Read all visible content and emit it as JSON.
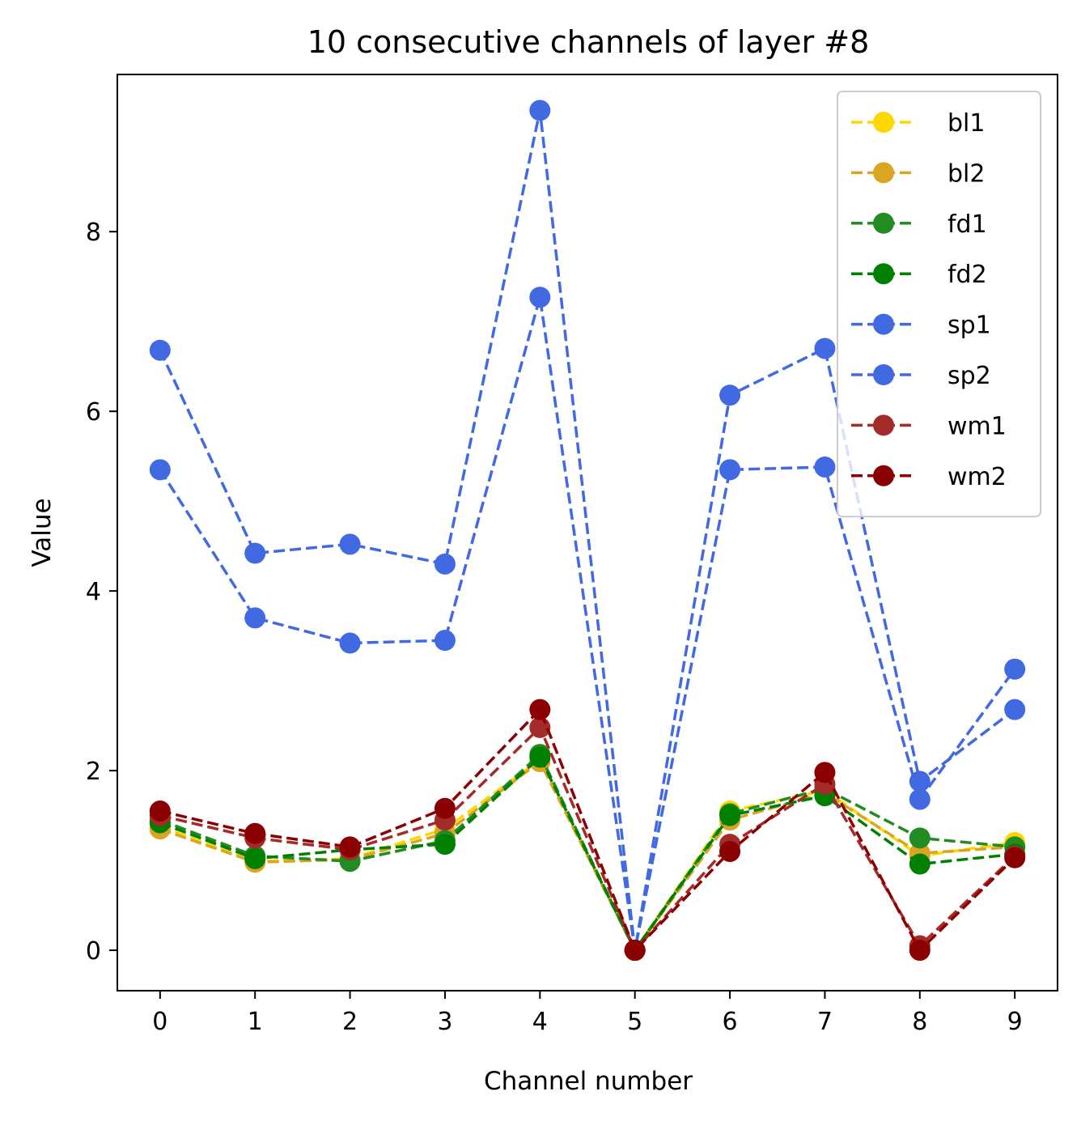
{
  "chart_data": {
    "type": "line",
    "title": "10 consecutive channels of layer #8",
    "xlabel": "Channel number",
    "ylabel": "Value",
    "x": [
      0,
      1,
      2,
      3,
      4,
      5,
      6,
      7,
      8,
      9
    ],
    "x_ticks": [
      "0",
      "1",
      "2",
      "3",
      "4",
      "5",
      "6",
      "7",
      "8",
      "9"
    ],
    "y_ticks": [
      "0",
      "2",
      "4",
      "6",
      "8"
    ],
    "xlim": [
      -0.45,
      9.45
    ],
    "ylim": [
      -0.45,
      9.75
    ],
    "grid": false,
    "legend_position": "top-right",
    "line_style": "dashed",
    "marker": "circle",
    "series": [
      {
        "name": "bl1",
        "color": "#FFD700",
        "values": [
          1.38,
          0.99,
          1.02,
          1.35,
          2.12,
          0.0,
          1.55,
          1.78,
          1.05,
          1.2
        ]
      },
      {
        "name": "bl2",
        "color": "#DAA520",
        "values": [
          1.35,
          0.98,
          1.01,
          1.3,
          2.1,
          0.0,
          1.45,
          1.75,
          1.08,
          1.15
        ]
      },
      {
        "name": "fd1",
        "color": "#228B22",
        "values": [
          1.45,
          1.05,
          0.99,
          1.22,
          2.18,
          0.0,
          1.52,
          1.8,
          1.25,
          1.15
        ]
      },
      {
        "name": "fd2",
        "color": "#008000",
        "values": [
          1.42,
          1.02,
          1.12,
          1.18,
          2.15,
          0.0,
          1.5,
          1.72,
          0.96,
          1.07
        ]
      },
      {
        "name": "sp1",
        "color": "#4169E1",
        "values": [
          6.68,
          4.42,
          4.52,
          4.3,
          9.35,
          0.0,
          6.18,
          6.7,
          1.88,
          2.68
        ]
      },
      {
        "name": "sp2",
        "color": "#4169E1",
        "values": [
          5.35,
          3.7,
          3.42,
          3.45,
          7.27,
          0.0,
          5.35,
          5.38,
          1.68,
          3.13
        ]
      },
      {
        "name": "wm1",
        "color": "#A52A2A",
        "values": [
          1.5,
          1.25,
          1.12,
          1.45,
          2.48,
          0.0,
          1.18,
          1.85,
          0.05,
          1.05
        ]
      },
      {
        "name": "wm2",
        "color": "#8B0000",
        "values": [
          1.55,
          1.3,
          1.15,
          1.58,
          2.68,
          0.0,
          1.1,
          1.98,
          0.0,
          1.03
        ]
      }
    ]
  }
}
